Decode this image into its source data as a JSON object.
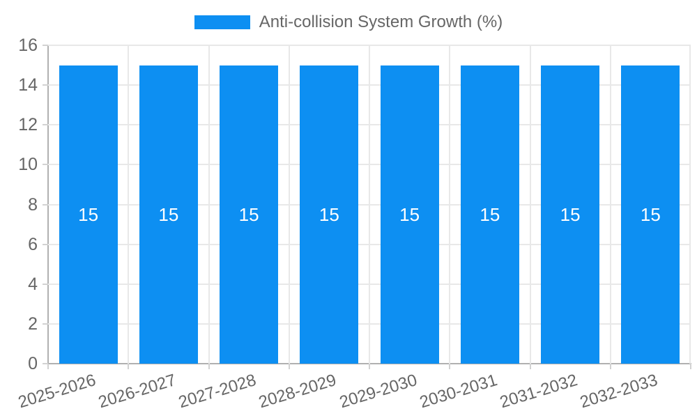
{
  "legend": {
    "label": "Anti-collision System Growth (%)"
  },
  "chart_data": {
    "type": "bar",
    "title": "Anti-collision System Growth (%)",
    "categories": [
      "2025-2026",
      "2026-2027",
      "2027-2028",
      "2028-2029",
      "2029-2030",
      "2030-2031",
      "2031-2032",
      "2032-2033"
    ],
    "values": [
      15,
      15,
      15,
      15,
      15,
      15,
      15,
      15
    ],
    "bar_labels": [
      "15",
      "15",
      "15",
      "15",
      "15",
      "15",
      "15",
      "15"
    ],
    "xlabel": "",
    "ylabel": "",
    "ylim": [
      0,
      16
    ],
    "yticks": [
      0,
      2,
      4,
      6,
      8,
      10,
      12,
      14,
      16
    ],
    "grid": true,
    "legend_position": "top",
    "colors": {
      "bar": "#0d8ff2",
      "bar_value_label": "#ffffff",
      "gridline": "#e8e8e8",
      "axis_line": "#b0b0b0",
      "tick_mark": "#d2d2d2",
      "text": "#666666",
      "background": "#ffffff"
    }
  }
}
